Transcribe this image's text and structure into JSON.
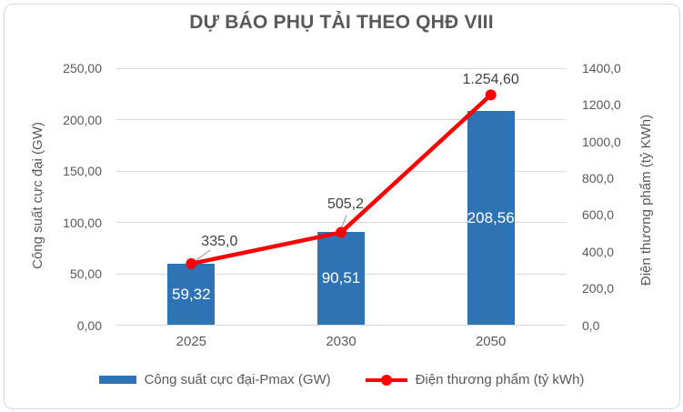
{
  "title": "DỰ BÁO PHỤ TẢI THEO QHĐ VIII",
  "chart_data": {
    "type": "combo-bar-line",
    "categories": [
      "2025",
      "2030",
      "2050"
    ],
    "series": [
      {
        "name": "Công suất cực đại-Pmax (GW)",
        "type": "bar",
        "axis": "primary",
        "values": [
          59.32,
          90.51,
          208.56
        ],
        "data_labels": [
          "59,32",
          "90,51",
          "208,56"
        ],
        "color": "#2E74B5"
      },
      {
        "name": "Điện thương phẩm (tỷ kWh)",
        "type": "line",
        "axis": "secondary",
        "values": [
          335.0,
          505.2,
          1254.6
        ],
        "data_labels": [
          "335,0",
          "505,2",
          "1.254,60"
        ],
        "color": "#FF0000"
      }
    ],
    "primary_axis": {
      "title": "Công suất cực đại (GW)",
      "min": 0,
      "max": 250,
      "step": 50,
      "tick_labels": [
        "0,00",
        "50,00",
        "100,00",
        "150,00",
        "200,00",
        "250,00"
      ]
    },
    "secondary_axis": {
      "title": "Điện thương phẩm (tỷ KWh)",
      "min": 0,
      "max": 1400,
      "step": 200,
      "tick_labels": [
        "0,0",
        "200,0",
        "400,0",
        "600,0",
        "800,0",
        "1000,0",
        "1200,0",
        "1400,0"
      ]
    },
    "grid": true,
    "legend_position": "bottom"
  },
  "legend": {
    "items": [
      {
        "label": "Công suất cực đại-Pmax (GW)"
      },
      {
        "label": "Điện thương phẩm (tỷ kWh)"
      }
    ]
  },
  "colors": {
    "bar": "#2E74B5",
    "line": "#FF0000",
    "text": "#595959",
    "grid": "#D9D9D9",
    "leader": "#A6A6A6"
  }
}
